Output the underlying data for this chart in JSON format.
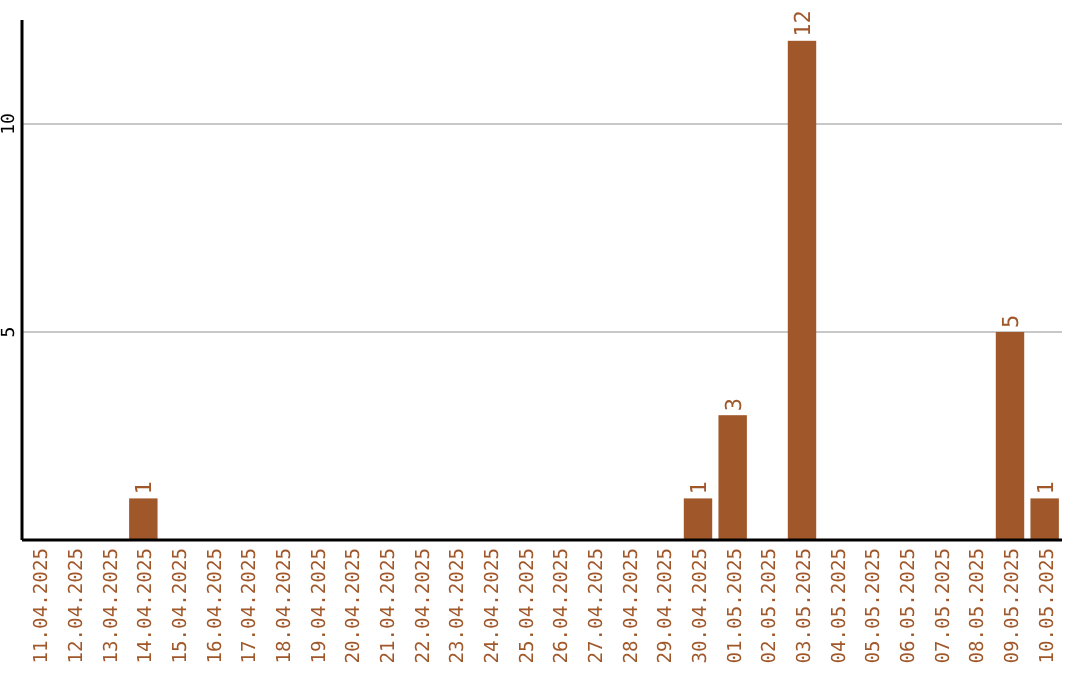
{
  "chart_data": {
    "type": "bar",
    "categories": [
      "11.04.2025",
      "12.04.2025",
      "13.04.2025",
      "14.04.2025",
      "15.04.2025",
      "16.04.2025",
      "17.04.2025",
      "18.04.2025",
      "19.04.2025",
      "20.04.2025",
      "21.04.2025",
      "22.04.2025",
      "23.04.2025",
      "24.04.2025",
      "25.04.2025",
      "26.04.2025",
      "27.04.2025",
      "28.04.2025",
      "29.04.2025",
      "30.04.2025",
      "01.05.2025",
      "02.05.2025",
      "03.05.2025",
      "04.05.2025",
      "05.05.2025",
      "06.05.2025",
      "07.05.2025",
      "08.05.2025",
      "09.05.2025",
      "10.05.2025"
    ],
    "values": [
      null,
      null,
      null,
      1,
      null,
      null,
      null,
      null,
      null,
      null,
      null,
      null,
      null,
      null,
      null,
      null,
      null,
      null,
      null,
      1,
      3,
      null,
      12,
      null,
      null,
      null,
      null,
      null,
      5,
      1
    ],
    "color": "#a0582a",
    "ylim": [
      0,
      12.5
    ],
    "yticks": [
      5,
      10
    ],
    "grid": "y",
    "data_labels": true
  }
}
